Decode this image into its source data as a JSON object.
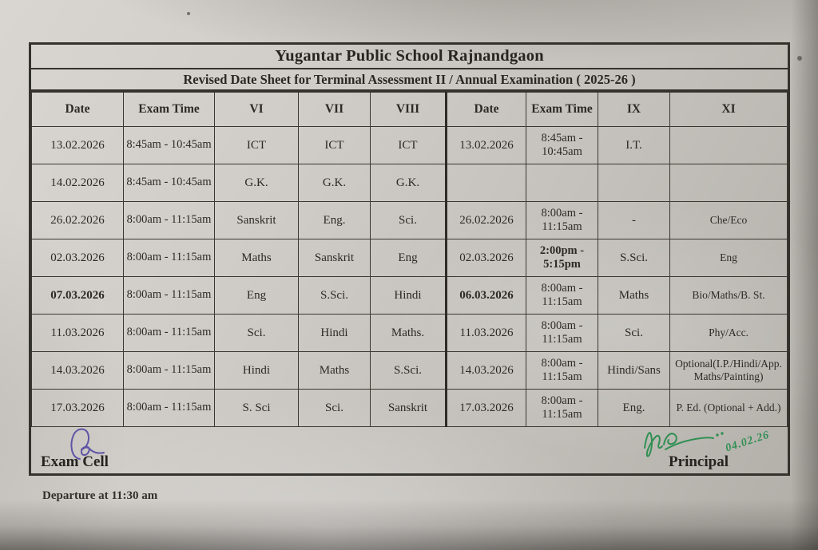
{
  "page": {
    "title": "Yugantar Public School Rajnandgaon",
    "subtitle": "Revised Date Sheet for Terminal Assessment II / Annual Examination  ( 2025-26 )",
    "note_below": "Departure at 11:30 am"
  },
  "table": {
    "headers": [
      "Date",
      "Exam Time",
      "VI",
      "VII",
      "VIII",
      "Date",
      "Exam Time",
      "IX",
      "XI"
    ],
    "rows": [
      [
        "13.02.2026",
        "8:45am - 10:45am",
        "ICT",
        "ICT",
        "ICT",
        "13.02.2026",
        "8:45am - 10:45am",
        "I.T.",
        ""
      ],
      [
        "14.02.2026",
        "8:45am - 10:45am",
        "G.K.",
        "G.K.",
        "G.K.",
        "",
        "",
        "",
        ""
      ],
      [
        "26.02.2026",
        "8:00am - 11:15am",
        "Sanskrit",
        "Eng.",
        "Sci.",
        "26.02.2026",
        "8:00am - 11:15am",
        "-",
        "Che/Eco"
      ],
      [
        "02.03.2026",
        "8:00am - 11:15am",
        "Maths",
        "Sanskrit",
        "Eng",
        "02.03.2026",
        "2:00pm - 5:15pm",
        "S.Sci.",
        "Eng"
      ],
      [
        "07.03.2026",
        "8:00am - 11:15am",
        "Eng",
        "S.Sci.",
        "Hindi",
        "06.03.2026",
        "8:00am - 11:15am",
        "Maths",
        "Bio/Maths/B. St."
      ],
      [
        "11.03.2026",
        "8:00am - 11:15am",
        "Sci.",
        "Hindi",
        "Maths.",
        "11.03.2026",
        "8:00am - 11:15am",
        "Sci.",
        "Phy/Acc."
      ],
      [
        "14.03.2026",
        "8:00am - 11:15am",
        "Hindi",
        "Maths",
        "S.Sci.",
        "14.03.2026",
        "8:00am - 11:15am",
        "Hindi/Sans",
        "Optional(I.P./Hindi/App. Maths/Painting)"
      ],
      [
        "17.03.2026",
        "8:00am - 11:15am",
        "S. Sci",
        "Sci.",
        "Sanskrit",
        "17.03.2026",
        "8:00am - 11:15am",
        "Eng.",
        "P. Ed. (Optional + Add.)"
      ]
    ],
    "bold_cells": [
      [
        3,
        6
      ],
      [
        4,
        0
      ],
      [
        4,
        5
      ]
    ]
  },
  "footer": {
    "left_label": "Exam Cell",
    "right_label": "Principal",
    "signature_date": "04.02.26"
  },
  "colors": {
    "ink": "#2c2a26",
    "green_signature": "#2f8f52",
    "blue_signature": "#5f55a5",
    "paper": "#d4d1cc"
  }
}
